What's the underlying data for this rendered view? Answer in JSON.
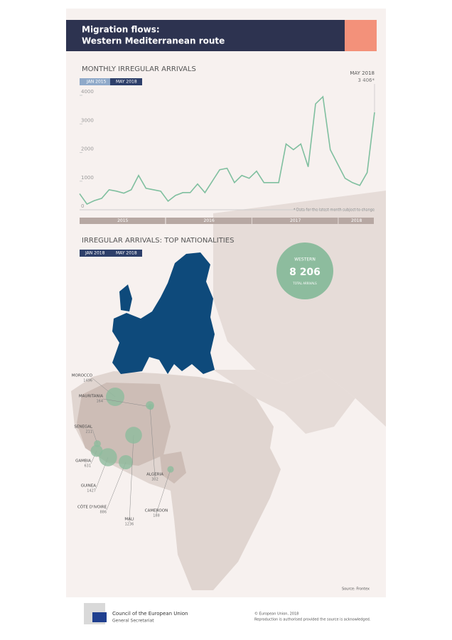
{
  "header": {
    "title_line1": "Migration flows:",
    "title_line2": "Western Mediterranean route"
  },
  "chart_data": {
    "type": "line",
    "title": "MONTHLY IRREGULAR ARRIVALS",
    "period_start": "JAN 2015",
    "period_end": "MAY 2018",
    "annotation": {
      "label": "MAY 2018",
      "value_label": "3 406*"
    },
    "note": "* Data for the latest month subject to change",
    "categories": [
      null,
      null,
      null,
      null,
      null,
      null,
      null,
      null,
      null,
      null,
      null,
      null,
      null,
      null,
      null,
      null,
      null,
      null,
      null,
      null,
      null,
      null,
      null,
      null,
      null,
      null,
      null,
      null,
      null,
      null,
      null,
      null,
      null,
      null,
      null,
      null,
      null,
      null,
      null,
      null,
      null
    ],
    "periods": [
      "2015",
      "2016",
      "2017",
      "2018"
    ],
    "series": [
      {
        "name": "Western Mediterranean",
        "color": "#7fbf9f",
        "values": [
          560,
          200,
          320,
          400,
          700,
          650,
          580,
          700,
          1200,
          750,
          700,
          650,
          300,
          500,
          600,
          600,
          900,
          600,
          1000,
          1400,
          1450,
          950,
          1200,
          1100,
          1350,
          950,
          950,
          950,
          2300,
          2100,
          2300,
          1500,
          3700,
          3950,
          2100,
          1600,
          1100,
          950,
          850,
          1300,
          3406
        ]
      }
    ],
    "ylim": [
      0,
      4100
    ],
    "yticks": [
      0,
      1000,
      2000,
      3000,
      4000
    ]
  },
  "nationalities": {
    "title": "IRREGULAR ARRIVALS: TOP NATIONALITIES",
    "period_start": "JAN 2018",
    "period_end": "MAY 2018",
    "total": {
      "label": "WESTERN",
      "value_label": "8 206",
      "caption": "TOTAL ARRIVALS"
    },
    "items": [
      {
        "name": "MOROCCO",
        "value": 1496
      },
      {
        "name": "MAURITANIA",
        "value": 164
      },
      {
        "name": "SENEGAL",
        "value": 211
      },
      {
        "name": "GAMBIA",
        "value": 631
      },
      {
        "name": "GUINEA",
        "value": 1427
      },
      {
        "name": "CÔTE D'IVOIRE",
        "value": 886
      },
      {
        "name": "MALI",
        "value": 1236
      },
      {
        "name": "ALGERIA",
        "value": 302
      },
      {
        "name": "CAMEROON",
        "value": 188
      }
    ],
    "source": "Source: Frontex"
  },
  "footer": {
    "org1": "Council of the European Union",
    "org2": "General Secretariat",
    "copyright": "© European Union, 2018",
    "reproduction": "Reproduction is authorised provided the source is acknowledged."
  }
}
